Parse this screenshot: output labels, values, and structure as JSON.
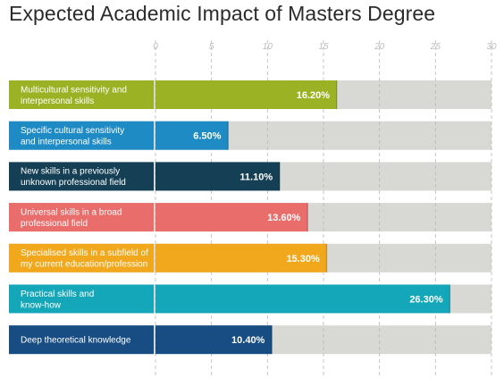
{
  "title": "Expected Academic Impact of Masters Degree",
  "chart_data": {
    "type": "bar",
    "orientation": "horizontal",
    "title": "Expected Academic Impact of Masters Degree",
    "xlim": [
      0,
      30
    ],
    "xticks": [
      "0",
      "5",
      "10",
      "15",
      "20",
      "25",
      "30"
    ],
    "grid": true,
    "legend": "none",
    "categories": [
      [
        "Multicultural sensitivity and",
        "interpersonal skills"
      ],
      [
        "Specific cultural sensitivity",
        "and interpersonal skills"
      ],
      [
        "New skills in a previously",
        "unknown professional field"
      ],
      [
        "Universal skills in a broad",
        "professional field"
      ],
      [
        "Specialised skills in a subfield of",
        "my current education/profession"
      ],
      [
        "Practical skills and",
        "know-how"
      ],
      [
        "Deep theoretical knowledge"
      ]
    ],
    "values": [
      16.2,
      6.5,
      11.1,
      13.6,
      15.3,
      26.3,
      10.4
    ],
    "value_labels": [
      "16.20%",
      "6.50%",
      "11.10%",
      "13.60%",
      "15.30%",
      "26.30%",
      "10.40%"
    ],
    "colors": [
      "#9bb224",
      "#1f8bc4",
      "#143f55",
      "#e96d6a",
      "#f2a81c",
      "#14a7b9",
      "#184d84"
    ],
    "track_color": "#d8d8d4"
  }
}
